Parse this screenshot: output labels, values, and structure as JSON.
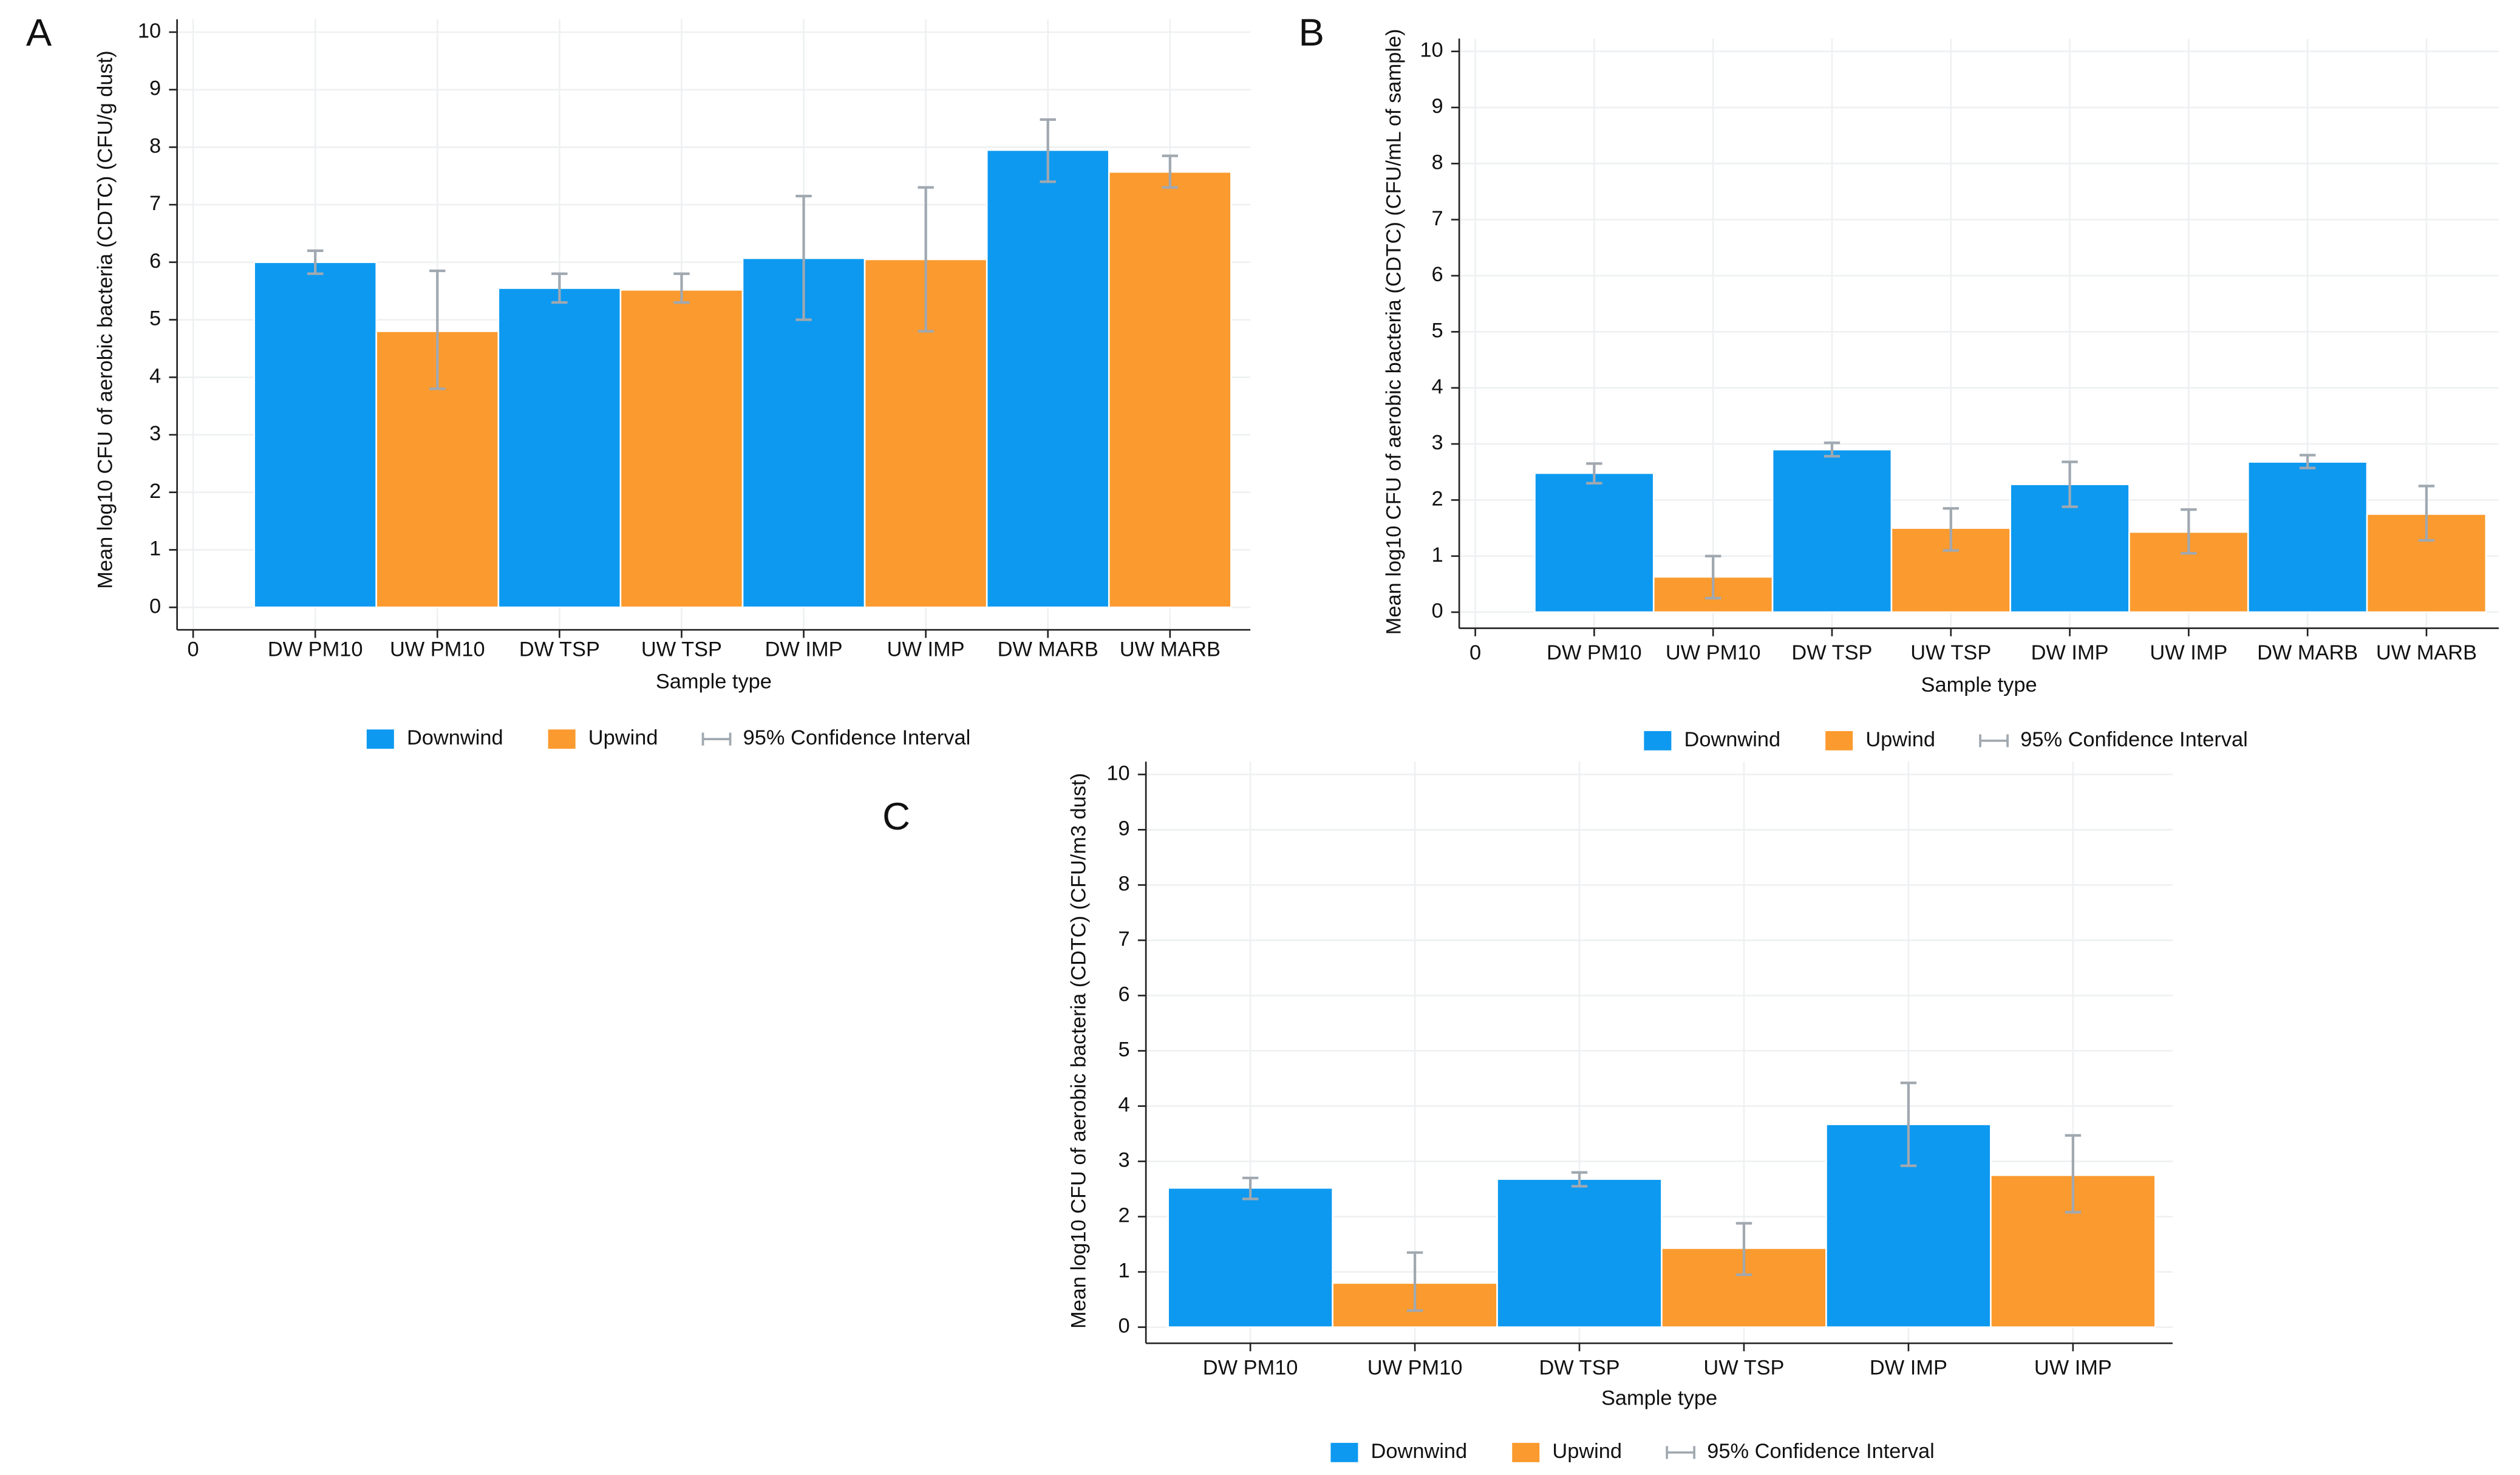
{
  "chart_data": [
    {
      "type": "bar",
      "panel": "A",
      "x_label": "Sample type",
      "y_label": "Mean log10 CFU of aerobic bacteria (CDTC) (CFU/g dust)",
      "categories": [
        "0",
        "DW PM10",
        "UW PM10",
        "DW TSP",
        "UW TSP",
        "DW IMP",
        "UW IMP",
        "DW MARB",
        "UW MARB"
      ],
      "values": [
        null,
        6.0,
        4.8,
        5.55,
        5.52,
        6.07,
        6.05,
        7.95,
        7.57
      ],
      "ci_low": [
        null,
        5.8,
        3.8,
        5.3,
        5.3,
        5.0,
        4.8,
        7.4,
        7.3
      ],
      "ci_high": [
        null,
        6.2,
        5.85,
        5.8,
        5.8,
        7.15,
        7.3,
        8.48,
        7.85
      ],
      "colors": [
        null,
        "#0d99f0",
        "#fb9a2e",
        "#0d99f0",
        "#fb9a2e",
        "#0d99f0",
        "#fb9a2e",
        "#0d99f0",
        "#fb9a2e"
      ],
      "ci_color": "#a0a8b0",
      "ylim": [
        0,
        10
      ],
      "yticks": [
        0,
        1,
        2,
        3,
        4,
        5,
        6,
        7,
        8,
        9,
        10
      ],
      "grid": true,
      "legend": [
        {
          "name": "Downwind",
          "color": "#0d99f0"
        },
        {
          "name": "Upwind",
          "color": "#fb9a2e"
        },
        {
          "name": "95% Confidence Interval",
          "color": "#a0a8b0"
        }
      ]
    },
    {
      "type": "bar",
      "panel": "B",
      "x_label": "Sample type",
      "y_label": "Mean log10 CFU of aerobic bacteria (CDTC) (CFU/mL of sample)",
      "categories": [
        "0",
        "DW PM10",
        "UW PM10",
        "DW TSP",
        "UW TSP",
        "DW IMP",
        "UW IMP",
        "DW MARB",
        "UW MARB"
      ],
      "values": [
        null,
        2.48,
        0.63,
        2.9,
        1.5,
        2.28,
        1.43,
        2.68,
        1.75
      ],
      "ci_low": [
        null,
        2.3,
        0.25,
        2.78,
        1.1,
        1.88,
        1.05,
        2.57,
        1.28
      ],
      "ci_high": [
        null,
        2.65,
        1.0,
        3.02,
        1.85,
        2.68,
        1.83,
        2.8,
        2.25
      ],
      "colors": [
        null,
        "#0d99f0",
        "#fb9a2e",
        "#0d99f0",
        "#fb9a2e",
        "#0d99f0",
        "#fb9a2e",
        "#0d99f0",
        "#fb9a2e"
      ],
      "ci_color": "#a0a8b0",
      "ylim": [
        0,
        10
      ],
      "yticks": [
        0,
        1,
        2,
        3,
        4,
        5,
        6,
        7,
        8,
        9,
        10
      ],
      "grid": true,
      "legend": [
        {
          "name": "Downwind",
          "color": "#0d99f0"
        },
        {
          "name": "Upwind",
          "color": "#fb9a2e"
        },
        {
          "name": "95% Confidence Interval",
          "color": "#a0a8b0"
        }
      ]
    },
    {
      "type": "bar",
      "panel": "C",
      "x_label": "Sample type",
      "y_label": "Mean log10 CFU of aerobic bacteria (CDTC) (CFU/m3 dust)",
      "categories": [
        "DW PM10",
        "UW PM10",
        "DW TSP",
        "UW TSP",
        "DW IMP",
        "UW IMP"
      ],
      "values": [
        2.52,
        0.8,
        2.68,
        1.43,
        3.67,
        2.75
      ],
      "ci_low": [
        2.32,
        0.3,
        2.55,
        0.95,
        2.92,
        2.08
      ],
      "ci_high": [
        2.7,
        1.35,
        2.8,
        1.88,
        4.42,
        3.47
      ],
      "colors": [
        "#0d99f0",
        "#fb9a2e",
        "#0d99f0",
        "#fb9a2e",
        "#0d99f0",
        "#fb9a2e"
      ],
      "ci_color": "#a0a8b0",
      "ylim": [
        0,
        10
      ],
      "yticks": [
        0,
        1,
        2,
        3,
        4,
        5,
        6,
        7,
        8,
        9,
        10
      ],
      "grid": true,
      "legend": [
        {
          "name": "Downwind",
          "color": "#0d99f0"
        },
        {
          "name": "Upwind",
          "color": "#fb9a2e"
        },
        {
          "name": "95% Confidence Interval",
          "color": "#a0a8b0"
        }
      ]
    }
  ]
}
